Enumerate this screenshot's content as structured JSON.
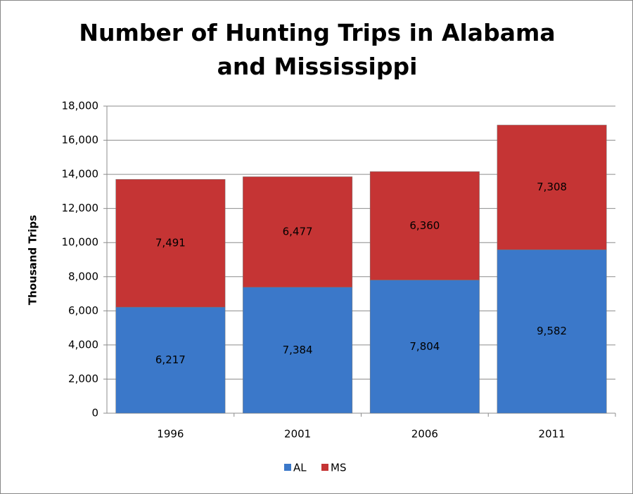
{
  "chart_data": {
    "type": "stacked_bar",
    "title": "Number of Hunting Trips in Alabama and Mississippi",
    "y_label": "Thousand Trips",
    "categories": [
      "1996",
      "2001",
      "2006",
      "2011"
    ],
    "series": [
      {
        "name": "AL",
        "color": "#3b78c9",
        "values": [
          6217,
          7384,
          7804,
          9582
        ],
        "value_labels": [
          "6,217",
          "7,384",
          "7,804",
          "9,582"
        ]
      },
      {
        "name": "MS",
        "color": "#c53434",
        "values": [
          7491,
          6477,
          6360,
          7308
        ],
        "value_labels": [
          "7,491",
          "6,477",
          "6,360",
          "7,308"
        ]
      }
    ],
    "ylim": [
      0,
      18000
    ],
    "yticks": [
      0,
      {
        "value": 2000,
        "label": "2,000"
      },
      {
        "value": 4000,
        "label": "4,000"
      },
      {
        "value": 6000,
        "label": "6,000"
      },
      {
        "value": 8000,
        "label": "8,000"
      },
      {
        "value": 10000,
        "label": "10,000"
      },
      {
        "value": 12000,
        "label": "12,000"
      },
      {
        "value": 14000,
        "label": "14,000"
      },
      {
        "value": 16000,
        "label": "16,000"
      },
      {
        "value": 18000,
        "label": "18,000"
      }
    ],
    "grid": true,
    "legend": "bottom"
  }
}
